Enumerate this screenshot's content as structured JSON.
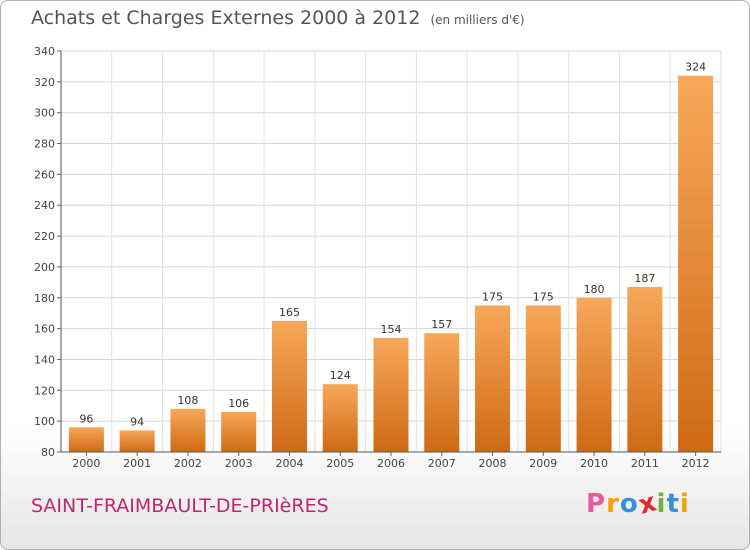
{
  "header": {
    "title": "Achats et Charges Externes 2000 à 2012",
    "unit": "(en milliers d'€)"
  },
  "footer": {
    "commune": "SAINT-FRAIMBAULT-DE-PRIèRES",
    "logo_letters": [
      "P",
      "r",
      "o",
      "x",
      "i",
      "t",
      "i"
    ],
    "logo_colors": [
      "#e85a9c",
      "#f5a100",
      "#3a8fd8",
      "#e8262d",
      "#6bb53a",
      "#3a8fd8",
      "#f5a100"
    ]
  },
  "chart_data": {
    "type": "bar",
    "categories": [
      "2000",
      "2001",
      "2002",
      "2003",
      "2004",
      "2005",
      "2006",
      "2007",
      "2008",
      "2009",
      "2010",
      "2011",
      "2012"
    ],
    "values": [
      96,
      94,
      108,
      106,
      165,
      124,
      154,
      157,
      175,
      175,
      180,
      187,
      324
    ],
    "data_labels": [
      "96",
      "94",
      "108",
      "106",
      "165",
      "124",
      "154",
      "157",
      "175",
      "175",
      "180",
      "187",
      "324"
    ],
    "ylim": [
      80,
      340
    ],
    "yticks": [
      80,
      100,
      120,
      140,
      160,
      180,
      200,
      220,
      240,
      260,
      280,
      300,
      320,
      340
    ],
    "ytick_labels": [
      "80",
      "100",
      "120",
      "140",
      "160",
      "180",
      "200",
      "220",
      "240",
      "260",
      "280",
      "300",
      "320",
      "340"
    ],
    "grid": true,
    "bar_color": "#f0963c"
  }
}
